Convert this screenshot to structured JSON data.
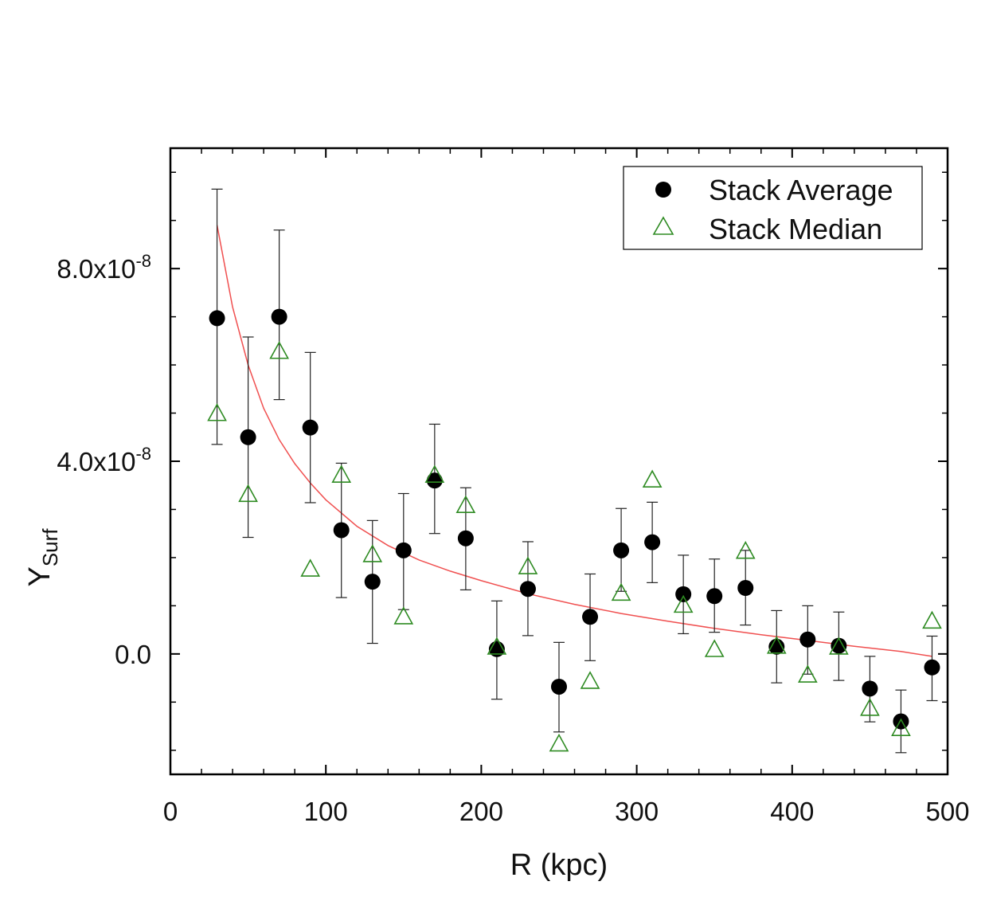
{
  "chart_data": {
    "type": "scatter",
    "xlabel": "R (kpc)",
    "ylabel": "Y",
    "ylabel_sub": "Surf",
    "xlim": [
      0,
      500
    ],
    "ylim": [
      -2.5e-08,
      1.05e-07
    ],
    "x_ticks": [
      0,
      100,
      200,
      300,
      400,
      500
    ],
    "x_tick_labels": [
      "0",
      "100",
      "200",
      "300",
      "400",
      "500"
    ],
    "y_ticks": [
      0,
      4e-08,
      8e-08
    ],
    "y_tick_labels": [
      {
        "mantissa": "0.0",
        "exponent": ""
      },
      {
        "mantissa": "4.0x10",
        "exponent": "-8"
      },
      {
        "mantissa": "8.0x10",
        "exponent": "-8"
      }
    ],
    "legend": {
      "placement": "top-right",
      "entries": [
        "Stack Average",
        "Stack Median"
      ]
    },
    "grid": false,
    "series": [
      {
        "name": "Stack Average",
        "marker": "filled-circle",
        "color": "#000000",
        "x": [
          30,
          50,
          70,
          90,
          110,
          130,
          150,
          170,
          190,
          210,
          230,
          250,
          270,
          290,
          310,
          330,
          350,
          370,
          390,
          410,
          430,
          450,
          470,
          490
        ],
        "y": [
          6.97e-08,
          4.5e-08,
          7e-08,
          4.7e-08,
          2.57e-08,
          1.5e-08,
          2.15e-08,
          3.6e-08,
          2.4e-08,
          1e-09,
          1.35e-08,
          -6.8e-09,
          7.7e-09,
          2.15e-08,
          2.32e-08,
          1.24e-08,
          1.2e-08,
          1.37e-08,
          1.5e-09,
          3e-09,
          1.7e-09,
          -7.2e-09,
          -1.4e-08,
          -2.8e-09
        ],
        "err_low": [
          4.35e-08,
          2.42e-08,
          5.28e-08,
          3.14e-08,
          1.17e-08,
          2.2e-09,
          9.2e-09,
          2.5e-08,
          1.33e-08,
          -9.4e-09,
          3.8e-09,
          -1.62e-08,
          -1.4e-09,
          1.3e-08,
          1.48e-08,
          4.2e-09,
          4.5e-09,
          6e-09,
          -6e-09,
          -4.2e-09,
          -5.5e-09,
          -1.41e-08,
          -2.05e-08,
          -9.7e-09
        ],
        "err_high": [
          9.65e-08,
          6.58e-08,
          8.8e-08,
          6.26e-08,
          3.96e-08,
          2.77e-08,
          3.33e-08,
          4.77e-08,
          3.45e-08,
          1.1e-08,
          2.33e-08,
          2.4e-09,
          1.66e-08,
          3.02e-08,
          3.15e-08,
          2.05e-08,
          1.97e-08,
          2.15e-08,
          9e-09,
          1e-08,
          8.7e-09,
          -5e-10,
          -7.5e-09,
          3.7e-09
        ]
      },
      {
        "name": "Stack Median",
        "marker": "open-triangle",
        "color": "#2e8b22",
        "x": [
          30,
          50,
          70,
          90,
          110,
          130,
          150,
          170,
          190,
          210,
          230,
          250,
          270,
          290,
          310,
          330,
          350,
          370,
          390,
          410,
          430,
          450,
          470,
          490
        ],
        "y": [
          4.98e-08,
          3.3e-08,
          6.27e-08,
          1.75e-08,
          3.7e-08,
          2.05e-08,
          7.6e-09,
          3.7e-08,
          3.07e-08,
          1.3e-09,
          1.8e-08,
          -1.88e-08,
          -5.8e-09,
          1.25e-08,
          3.6e-08,
          1e-08,
          8e-10,
          2.12e-08,
          1.5e-09,
          -4.5e-09,
          1.3e-09,
          -1.14e-08,
          -1.56e-08,
          6.7e-09
        ]
      },
      {
        "fit": true,
        "line": "solid",
        "color": "#f05050",
        "x": [
          30,
          40,
          50,
          60,
          70,
          80,
          90,
          100,
          120,
          140,
          160,
          180,
          200,
          230,
          260,
          290,
          320,
          350,
          380,
          410,
          440,
          470,
          490
        ],
        "y": [
          8.9e-08,
          7.2e-08,
          6e-08,
          5.1e-08,
          4.45e-08,
          3.95e-08,
          3.55e-08,
          3.2e-08,
          2.65e-08,
          2.25e-08,
          1.95e-08,
          1.72e-08,
          1.52e-08,
          1.25e-08,
          1.03e-08,
          8.4e-09,
          6.8e-09,
          5.3e-09,
          4e-09,
          2.8e-09,
          1.6e-09,
          5e-10,
          -5e-10
        ]
      }
    ]
  }
}
